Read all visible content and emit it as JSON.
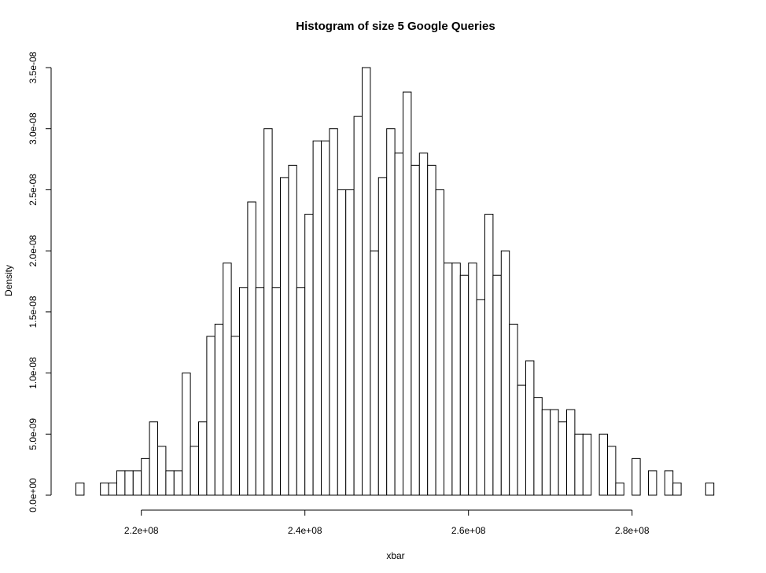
{
  "chart_data": {
    "type": "bar",
    "title": "Histogram of size 5 Google Queries",
    "xlabel": "xbar",
    "ylabel": "Density",
    "bin_start": 212000000,
    "bin_width": 1000000,
    "values": [
      1e-09,
      0,
      0,
      1e-09,
      1e-09,
      2e-09,
      2e-09,
      2e-09,
      3e-09,
      6e-09,
      4e-09,
      2e-09,
      2e-09,
      1e-08,
      4e-09,
      6e-09,
      1.3e-08,
      1.4e-08,
      1.9e-08,
      1.3e-08,
      1.7e-08,
      2.4e-08,
      1.7e-08,
      3e-08,
      1.7e-08,
      2.6e-08,
      2.7e-08,
      1.7e-08,
      2.3e-08,
      2.9e-08,
      2.9e-08,
      3e-08,
      2.5e-08,
      2.5e-08,
      3.1e-08,
      3.5e-08,
      2e-08,
      2.6e-08,
      3e-08,
      2.8e-08,
      3.3e-08,
      2.7e-08,
      2.8e-08,
      2.7e-08,
      2.5e-08,
      1.9e-08,
      1.9e-08,
      1.8e-08,
      1.9e-08,
      1.6e-08,
      2.3e-08,
      1.8e-08,
      2e-08,
      1.4e-08,
      9e-09,
      1.1e-08,
      8e-09,
      7e-09,
      7e-09,
      6e-09,
      7e-09,
      5e-09,
      5e-09,
      0,
      5e-09,
      4e-09,
      1e-09,
      0,
      3e-09,
      0,
      2e-09,
      0,
      2e-09,
      1e-09,
      0,
      0,
      0,
      1e-09
    ],
    "x_ticks": [
      {
        "value": 220000000,
        "label": "2.2e+08"
      },
      {
        "value": 240000000,
        "label": "2.4e+08"
      },
      {
        "value": 260000000,
        "label": "2.6e+08"
      },
      {
        "value": 280000000,
        "label": "2.8e+08"
      }
    ],
    "y_ticks": [
      {
        "value": 0,
        "label": "0.0e+00"
      },
      {
        "value": 5e-09,
        "label": "5.0e-09"
      },
      {
        "value": 1e-08,
        "label": "1.0e-08"
      },
      {
        "value": 1.5e-08,
        "label": "1.5e-08"
      },
      {
        "value": 2e-08,
        "label": "2.0e-08"
      },
      {
        "value": 2.5e-08,
        "label": "2.5e-08"
      },
      {
        "value": 3e-08,
        "label": "3.0e-08"
      },
      {
        "value": 3.5e-08,
        "label": "3.5e-08"
      }
    ],
    "ylim": [
      0,
      3.5e-08
    ],
    "grid": false,
    "bar_fill": "#ffffff",
    "bar_stroke": "#000000"
  }
}
